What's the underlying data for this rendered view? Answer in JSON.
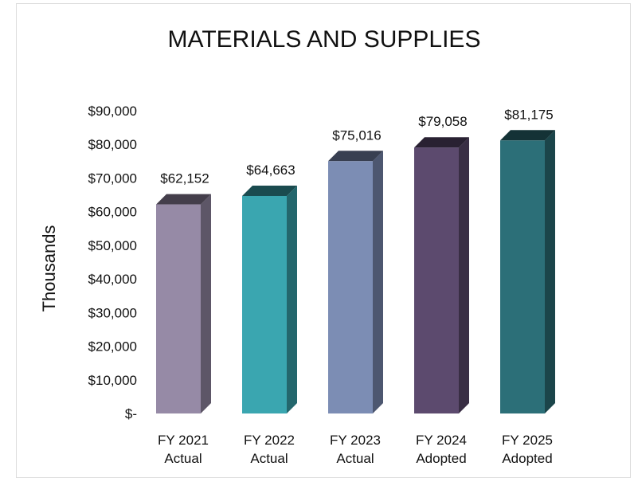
{
  "chart_data": {
    "type": "bar",
    "title": "MATERIALS AND  SUPPLIES",
    "ylabel": "Thousands",
    "xlabel": "",
    "ylim": [
      0,
      90000
    ],
    "y_ticks": [
      "$-",
      "$10,000",
      "$20,000",
      "$30,000",
      "$40,000",
      "$50,000",
      "$60,000",
      "$70,000",
      "$80,000",
      "$90,000"
    ],
    "categories": [
      [
        "FY 2021",
        "Actual"
      ],
      [
        "FY 2022",
        "Actual"
      ],
      [
        "FY 2023",
        "Actual"
      ],
      [
        "FY 2024",
        "Adopted"
      ],
      [
        "FY 2025",
        "Adopted"
      ]
    ],
    "values": [
      62152,
      64663,
      75016,
      79058,
      81175
    ],
    "value_labels": [
      "$62,152",
      "$64,663",
      "$75,016",
      "$79,058",
      "$81,175"
    ],
    "colors": [
      "#968aa6",
      "#3aa6b0",
      "#7c8db4",
      "#5c4a6e",
      "#2c6f78"
    ],
    "grid": false,
    "legend": "none"
  }
}
